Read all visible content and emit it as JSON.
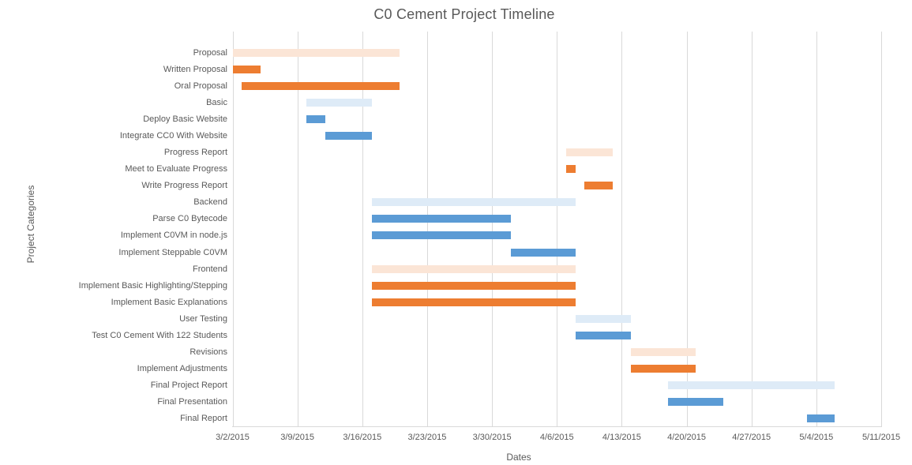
{
  "chart": {
    "title": "C0 Cement Project Timeline",
    "x_axis_title": "Dates",
    "y_axis_title": "Project Categories"
  },
  "chart_data": {
    "type": "bar",
    "subtype": "gantt",
    "title": "C0 Cement Project Timeline",
    "xlabel": "Dates",
    "ylabel": "Project Categories",
    "grid": true,
    "legend_position": "none",
    "axis_start_date": "3/2/2015",
    "axis_end_date": "5/11/2015",
    "tick_interval_days": 7,
    "tick_labels": [
      "3/2/2015",
      "3/9/2015",
      "3/16/2015",
      "3/23/2015",
      "3/30/2015",
      "4/6/2015",
      "4/13/2015",
      "4/20/2015",
      "4/27/2015",
      "5/4/2015",
      "5/11/2015"
    ],
    "palette": {
      "orange": "#ED7D31",
      "orange_light": "#FBE5D6",
      "blue": "#5B9BD5",
      "blue_light": "#DEEBF7"
    },
    "text_color": "#595959",
    "gridline_color": "#D9D9D9",
    "categories": [
      "Proposal",
      "Written Proposal",
      "Oral Proposal",
      "Basic",
      "Deploy Basic Website",
      "Integrate CC0 With Website",
      "Progress Report",
      "Meet to Evaluate Progress",
      "Write Progress Report",
      "Backend",
      "Parse C0 Bytecode",
      "Implement C0VM in node.js",
      "Implement Steppable C0VM",
      "Frontend",
      "Implement Basic Highlighting/Stepping",
      "Implement Basic Explanations",
      "User Testing",
      "Test C0 Cement With 122 Students",
      "Revisions",
      "Implement Adjustments",
      "Final Project Report",
      "Final Presentation",
      "Final Report"
    ],
    "tasks": [
      {
        "label": "Proposal",
        "start": "3/2/2015",
        "end": "3/20/2015",
        "color": "orange_light",
        "role": "summary"
      },
      {
        "label": "Written Proposal",
        "start": "3/2/2015",
        "end": "3/5/2015",
        "color": "orange",
        "role": "task"
      },
      {
        "label": "Oral Proposal",
        "start": "3/3/2015",
        "end": "3/20/2015",
        "color": "orange",
        "role": "task"
      },
      {
        "label": "Basic",
        "start": "3/10/2015",
        "end": "3/17/2015",
        "color": "blue_light",
        "role": "summary"
      },
      {
        "label": "Deploy Basic Website",
        "start": "3/10/2015",
        "end": "3/12/2015",
        "color": "blue",
        "role": "task"
      },
      {
        "label": "Integrate CC0 With Website",
        "start": "3/12/2015",
        "end": "3/17/2015",
        "color": "blue",
        "role": "task"
      },
      {
        "label": "Progress Report",
        "start": "4/7/2015",
        "end": "4/12/2015",
        "color": "orange_light",
        "role": "summary"
      },
      {
        "label": "Meet to Evaluate Progress",
        "start": "4/7/2015",
        "end": "4/8/2015",
        "color": "orange",
        "role": "task"
      },
      {
        "label": "Write Progress Report",
        "start": "4/9/2015",
        "end": "4/12/2015",
        "color": "orange",
        "role": "task"
      },
      {
        "label": "Backend",
        "start": "3/17/2015",
        "end": "4/8/2015",
        "color": "blue_light",
        "role": "summary"
      },
      {
        "label": "Parse C0 Bytecode",
        "start": "3/17/2015",
        "end": "4/1/2015",
        "color": "blue",
        "role": "task"
      },
      {
        "label": "Implement C0VM in node.js",
        "start": "3/17/2015",
        "end": "4/1/2015",
        "color": "blue",
        "role": "task"
      },
      {
        "label": "Implement Steppable C0VM",
        "start": "4/1/2015",
        "end": "4/8/2015",
        "color": "blue",
        "role": "task"
      },
      {
        "label": "Frontend",
        "start": "3/17/2015",
        "end": "4/8/2015",
        "color": "orange_light",
        "role": "summary"
      },
      {
        "label": "Implement Basic Highlighting/Stepping",
        "start": "3/17/2015",
        "end": "4/8/2015",
        "color": "orange",
        "role": "task"
      },
      {
        "label": "Implement Basic Explanations",
        "start": "3/17/2015",
        "end": "4/8/2015",
        "color": "orange",
        "role": "task"
      },
      {
        "label": "User Testing",
        "start": "4/8/2015",
        "end": "4/14/2015",
        "color": "blue_light",
        "role": "summary"
      },
      {
        "label": "Test C0 Cement With 122 Students",
        "start": "4/8/2015",
        "end": "4/14/2015",
        "color": "blue",
        "role": "task"
      },
      {
        "label": "Revisions",
        "start": "4/14/2015",
        "end": "4/21/2015",
        "color": "orange_light",
        "role": "summary"
      },
      {
        "label": "Implement Adjustments",
        "start": "4/14/2015",
        "end": "4/21/2015",
        "color": "orange",
        "role": "task"
      },
      {
        "label": "Final Project Report",
        "start": "4/18/2015",
        "end": "5/6/2015",
        "color": "blue_light",
        "role": "summary"
      },
      {
        "label": "Final Presentation",
        "start": "4/18/2015",
        "end": "4/24/2015",
        "color": "blue",
        "role": "task"
      },
      {
        "label": "Final Report",
        "start": "5/3/2015",
        "end": "5/6/2015",
        "color": "blue",
        "role": "task"
      }
    ]
  }
}
